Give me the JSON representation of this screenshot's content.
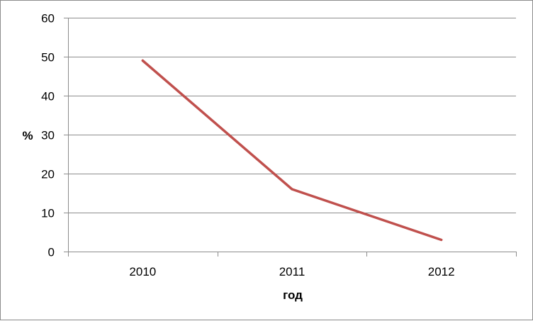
{
  "chart_data": {
    "type": "line",
    "categories": [
      "2010",
      "2011",
      "2012"
    ],
    "series": [
      {
        "values": [
          49,
          16,
          3
        ]
      }
    ],
    "title": "",
    "xlabel": "год",
    "ylabel": "%",
    "ylim": [
      0,
      60
    ],
    "yticks": [
      0,
      10,
      20,
      30,
      40,
      50,
      60
    ],
    "grid": true,
    "legend": "none",
    "colors": {
      "series": "#c0504d",
      "grid": "#8c8c8c",
      "axis": "#8c8c8c"
    }
  }
}
